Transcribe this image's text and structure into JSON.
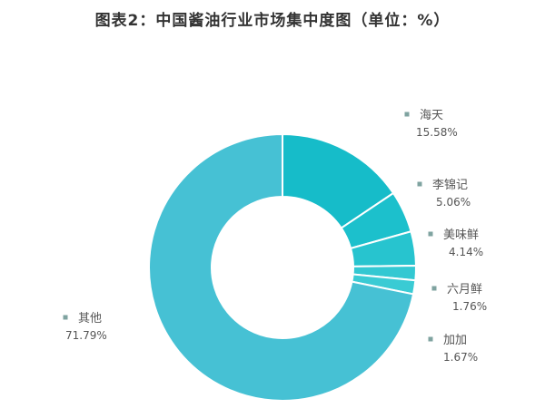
{
  "chart_data": {
    "type": "pie",
    "variant": "donut",
    "title": "图表2：中国酱油行业市场集中度图（单位：%）",
    "categories": [
      "海天",
      "李锦记",
      "美味鲜",
      "六月鲜",
      "加加",
      "其他"
    ],
    "values": [
      15.58,
      5.06,
      4.14,
      1.76,
      1.67,
      71.79
    ],
    "value_labels": [
      "15.58%",
      "5.06%",
      "4.14%",
      "1.76%",
      "1.67%",
      "71.79%"
    ],
    "colors": [
      "#16BCC9",
      "#1CC0CC",
      "#27C4CF",
      "#33C8D2",
      "#3ACBD4",
      "#46C1D4"
    ],
    "legend_marker_color": "#7FA3A0",
    "legend": "beside-slices"
  }
}
